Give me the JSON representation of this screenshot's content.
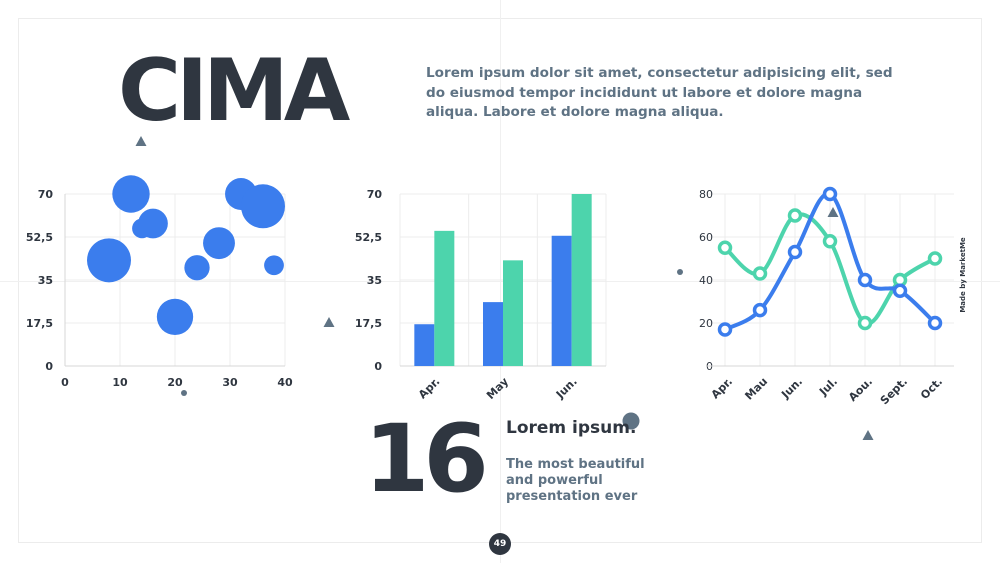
{
  "slide": {
    "title": "CIMA",
    "intro": "Lorem ipsum dolor sit amet, consectetur adipisicing elit, sed do eiusmod tempor incididunt ut labore et dolore magna aliqua. Labore et dolore magna aliqua.",
    "big_number": "16",
    "sub_title": "Lorem ipsum.",
    "sub_text": "The most beautiful and powerful presentation ever",
    "page_number": "49",
    "credit": "Made by MarketMe"
  },
  "colors": {
    "blue": "#3b7ded",
    "green": "#4dd4ac",
    "dark": "#2f3640",
    "slate": "#5f7384"
  },
  "chart_data": [
    {
      "type": "scatter",
      "xlim": [
        0,
        40
      ],
      "ylim": [
        0,
        70
      ],
      "x_ticks": [
        "0",
        "10",
        "20",
        "30",
        "40"
      ],
      "y_ticks": [
        "0",
        "17,5",
        "35",
        "52,5",
        "70"
      ],
      "points": [
        {
          "x": 8,
          "y": 43,
          "r": 4
        },
        {
          "x": 12,
          "y": 70,
          "r": 3.4
        },
        {
          "x": 14,
          "y": 56,
          "r": 1.8
        },
        {
          "x": 16,
          "y": 58,
          "r": 2.7
        },
        {
          "x": 20,
          "y": 20,
          "r": 3.3
        },
        {
          "x": 24,
          "y": 40,
          "r": 2.3
        },
        {
          "x": 28,
          "y": 50,
          "r": 2.9
        },
        {
          "x": 32,
          "y": 70,
          "r": 2.9
        },
        {
          "x": 36,
          "y": 65,
          "r": 4
        },
        {
          "x": 38,
          "y": 41,
          "r": 1.8
        }
      ],
      "color": "#3b7ded"
    },
    {
      "type": "bar",
      "categories": [
        "Apr.",
        "May",
        "Jun."
      ],
      "ylim": [
        0,
        70
      ],
      "y_ticks": [
        "0",
        "17,5",
        "35",
        "52,5",
        "70"
      ],
      "series": [
        {
          "values": [
            17,
            26,
            53
          ],
          "color": "#3b7ded"
        },
        {
          "values": [
            55,
            43,
            70
          ],
          "color": "#4dd4ac"
        }
      ]
    },
    {
      "type": "line",
      "categories": [
        "Apr.",
        "Mau",
        "Jun.",
        "Jul.",
        "Aou.",
        "Sept.",
        "Oct."
      ],
      "ylim": [
        0,
        80
      ],
      "y_ticks": [
        "0",
        "20",
        "40",
        "60",
        "80"
      ],
      "series": [
        {
          "values": [
            17,
            26,
            53,
            80,
            40,
            35,
            20
          ],
          "color": "#3b7ded"
        },
        {
          "values": [
            55,
            43,
            70,
            58,
            20,
            40,
            50
          ],
          "color": "#4dd4ac"
        }
      ]
    }
  ]
}
